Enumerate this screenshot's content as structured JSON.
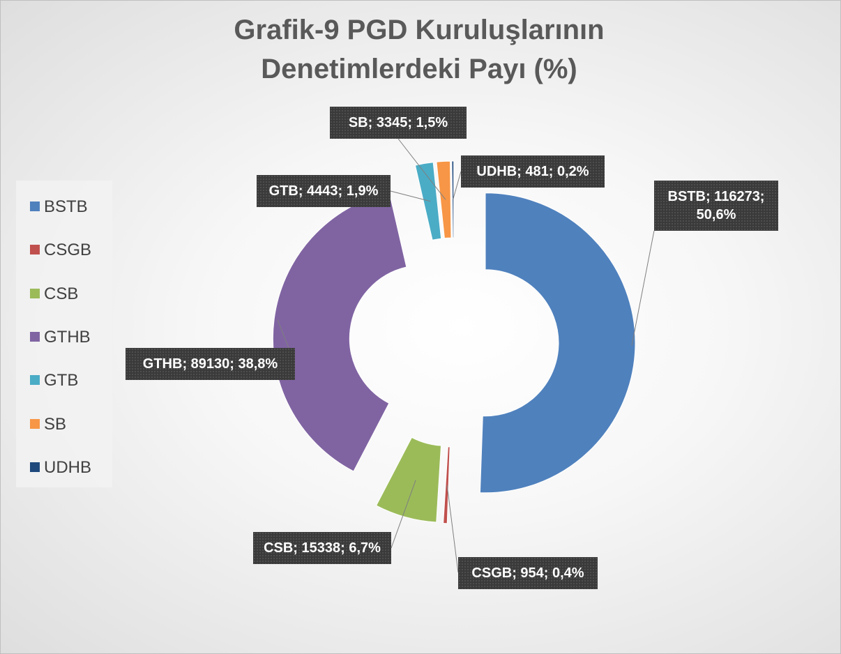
{
  "chart_data": {
    "type": "donut",
    "title": "Grafik-9 PGD Kuruluşlarının Denetimlerdeki Payı (%)",
    "categories": [
      "BSTB",
      "CSGB",
      "CSB",
      "GTHB",
      "GTB",
      "SB",
      "UDHB"
    ],
    "values": [
      116273,
      954,
      15338,
      89130,
      4443,
      3345,
      481
    ],
    "value_labels": [
      "BSTB; 116273; 50,6%",
      "CSGB; 954; 0,4%",
      "CSB; 15338; 6,7%",
      "GTHB; 89130; 38,8%",
      "GTB; 4443; 1,9%",
      "SB; 3345; 1,5%",
      "UDHB; 481; 0,2%"
    ],
    "colors": [
      "#4f81bd",
      "#c0504d",
      "#9bbb59",
      "#8064a2",
      "#4bacc6",
      "#f79646",
      "#1f497d"
    ],
    "legend": "left"
  }
}
